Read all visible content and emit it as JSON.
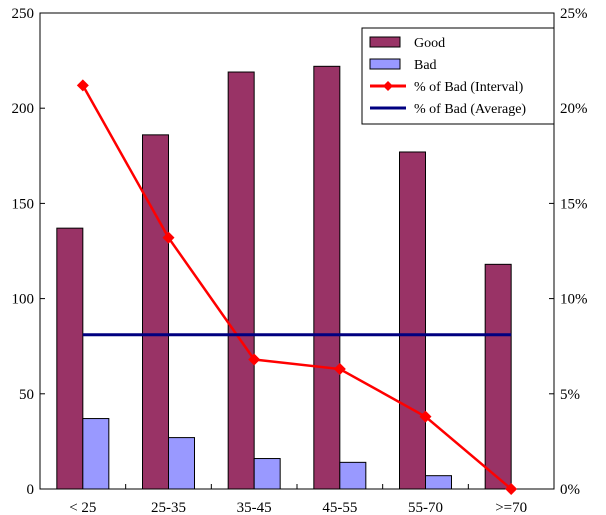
{
  "chart_data": {
    "type": "bar",
    "title": "",
    "xlabel": "",
    "ylabel": "",
    "y2label": "",
    "categories": [
      "< 25",
      "25-35",
      "35-45",
      "45-55",
      "55-70",
      ">=70"
    ],
    "ylim": [
      0,
      250
    ],
    "y_ticks": [
      0,
      50,
      100,
      150,
      200,
      250
    ],
    "y_tick_labels": [
      "0",
      "50",
      "100",
      "150",
      "200",
      "250"
    ],
    "y2lim": [
      0,
      25
    ],
    "y2_ticks": [
      0,
      5,
      10,
      15,
      20,
      25
    ],
    "y2_tick_labels": [
      "0%",
      "5%",
      "10%",
      "15%",
      "20%",
      "25%"
    ],
    "grid": false,
    "legend_position": "top-right",
    "series": [
      {
        "name": "Good",
        "type": "bar",
        "axis": "left",
        "color": "#993366",
        "values": [
          137,
          186,
          219,
          222,
          177,
          118
        ]
      },
      {
        "name": "Bad",
        "type": "bar",
        "axis": "left",
        "color": "#9999ff",
        "values": [
          37,
          27,
          16,
          14,
          7,
          0
        ]
      },
      {
        "name": "% of Bad (Interval)",
        "type": "line",
        "axis": "right",
        "marker": "diamond",
        "color": "#ff0000",
        "values": [
          21.2,
          13.2,
          6.8,
          6.3,
          3.8,
          0.0
        ]
      },
      {
        "name": "% of Bad (Average)",
        "type": "line",
        "axis": "right",
        "color": "#000080",
        "values": [
          8.1,
          8.1,
          8.1,
          8.1,
          8.1,
          8.1
        ]
      }
    ]
  }
}
